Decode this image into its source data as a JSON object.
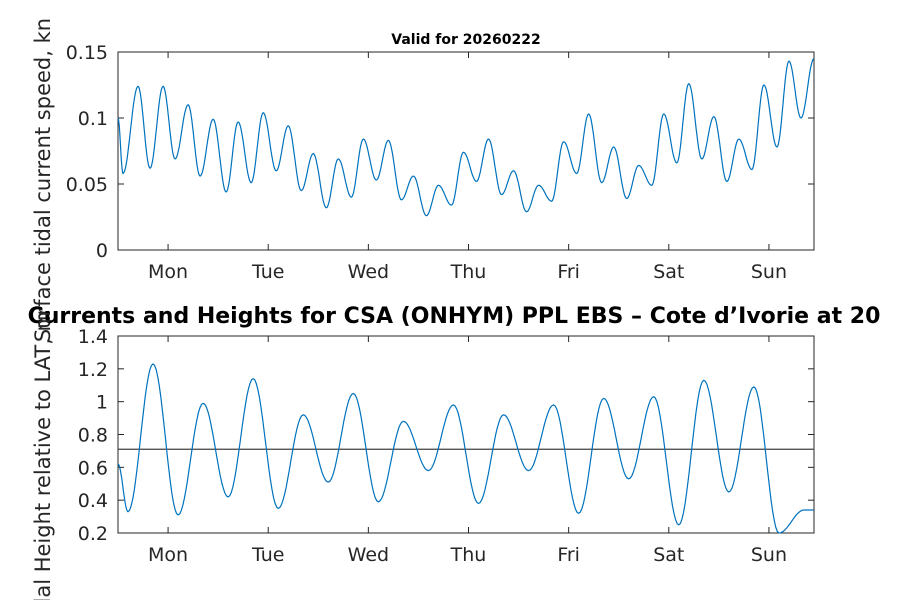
{
  "figure": {
    "main_title": "Currents and Heights for CSA (ONHYM) PPL EBS  – Cote d’Ivorie at 20"
  },
  "chart_data": [
    {
      "type": "line",
      "title": "Valid for 20260222",
      "xlabel": "",
      "ylabel": "Surface tidal current speed, kn",
      "ylim": [
        0,
        0.15
      ],
      "yticks": [
        0,
        0.05,
        0.1,
        0.15
      ],
      "ytick_labels": [
        "0",
        "0.05",
        "0.1",
        "0.15"
      ],
      "xlim": [
        0,
        6.95
      ],
      "xticks": [
        0.5,
        1.5,
        2.5,
        3.5,
        4.5,
        5.5,
        6.5
      ],
      "xtick_labels": [
        "Mon",
        "Tue",
        "Wed",
        "Thu",
        "Fri",
        "Sat",
        "Sun"
      ],
      "series": [
        {
          "name": "current speed",
          "color": "#0072BD",
          "x": [
            0,
            0.05,
            0.2,
            0.32,
            0.45,
            0.57,
            0.7,
            0.82,
            0.95,
            1.08,
            1.2,
            1.33,
            1.45,
            1.58,
            1.7,
            1.83,
            1.95,
            2.08,
            2.2,
            2.33,
            2.45,
            2.58,
            2.7,
            2.83,
            2.95,
            3.08,
            3.2,
            3.33,
            3.45,
            3.58,
            3.7,
            3.83,
            3.95,
            4.08,
            4.2,
            4.33,
            4.45,
            4.58,
            4.7,
            4.83,
            4.95,
            5.08,
            5.2,
            5.33,
            5.45,
            5.58,
            5.7,
            5.83,
            5.95,
            6.08,
            6.2,
            6.33,
            6.45,
            6.58,
            6.7,
            6.82,
            6.95
          ],
          "y": [
            0.1,
            0.058,
            0.124,
            0.062,
            0.124,
            0.069,
            0.11,
            0.056,
            0.099,
            0.044,
            0.097,
            0.051,
            0.104,
            0.06,
            0.094,
            0.045,
            0.073,
            0.032,
            0.069,
            0.04,
            0.084,
            0.053,
            0.083,
            0.038,
            0.056,
            0.026,
            0.049,
            0.034,
            0.074,
            0.052,
            0.084,
            0.042,
            0.06,
            0.029,
            0.049,
            0.037,
            0.082,
            0.058,
            0.103,
            0.051,
            0.078,
            0.039,
            0.064,
            0.049,
            0.103,
            0.066,
            0.126,
            0.069,
            0.101,
            0.052,
            0.084,
            0.061,
            0.125,
            0.078,
            0.143,
            0.1,
            0.145
          ]
        }
      ]
    },
    {
      "type": "line",
      "title": "",
      "xlabel": "",
      "ylabel": "Tidal Height relative to LAT, m",
      "ylim": [
        0.2,
        1.4
      ],
      "yticks": [
        0.2,
        0.4,
        0.6,
        0.8,
        1.0,
        1.2,
        1.4
      ],
      "ytick_labels": [
        "0.2",
        "0.4",
        "0.6",
        "0.8",
        "1",
        "1.2",
        "1.4"
      ],
      "xlim": [
        0,
        6.95
      ],
      "xticks": [
        0.5,
        1.5,
        2.5,
        3.5,
        4.5,
        5.5,
        6.5
      ],
      "xtick_labels": [
        "Mon",
        "Tue",
        "Wed",
        "Thu",
        "Fri",
        "Sat",
        "Sun"
      ],
      "reference_line": {
        "y": 0.71,
        "color": "#404040"
      },
      "series": [
        {
          "name": "tidal height",
          "color": "#0072BD",
          "x": [
            0,
            0.1,
            0.35,
            0.6,
            0.85,
            1.1,
            1.35,
            1.6,
            1.85,
            2.1,
            2.35,
            2.6,
            2.85,
            3.1,
            3.35,
            3.6,
            3.85,
            4.1,
            4.35,
            4.6,
            4.85,
            5.1,
            5.35,
            5.6,
            5.85,
            6.1,
            6.35,
            6.6,
            6.85,
            6.95
          ],
          "y": [
            0.62,
            0.33,
            1.23,
            0.31,
            0.99,
            0.42,
            1.14,
            0.35,
            0.92,
            0.51,
            1.05,
            0.39,
            0.88,
            0.58,
            0.98,
            0.38,
            0.92,
            0.58,
            0.98,
            0.32,
            1.02,
            0.53,
            1.03,
            0.25,
            1.13,
            0.45,
            1.09,
            0.2,
            0.34,
            0.34
          ]
        }
      ]
    }
  ]
}
